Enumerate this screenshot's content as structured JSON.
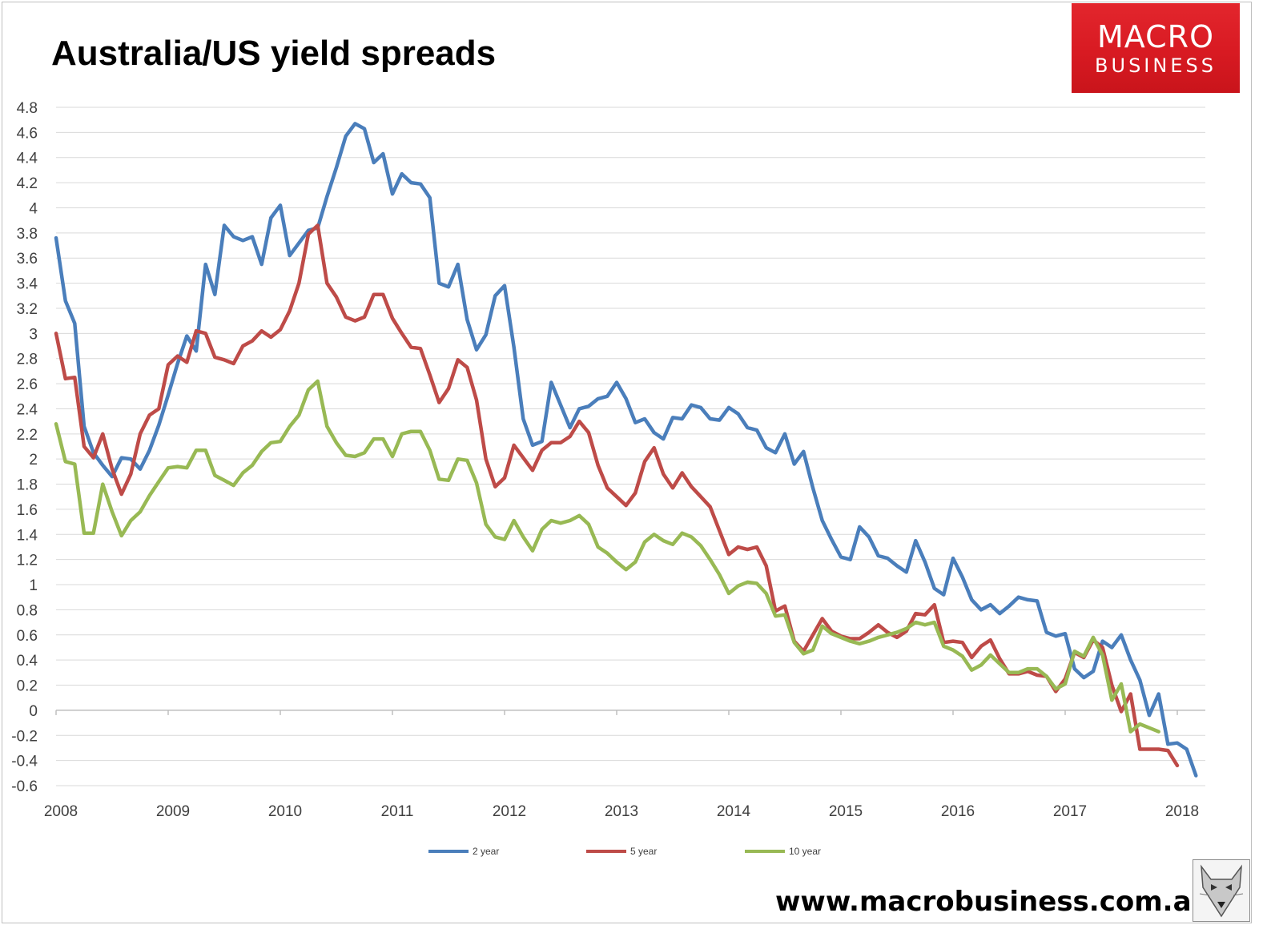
{
  "title": "Australia/US yield spreads",
  "logo": {
    "line1": "MACRO",
    "line2": "BUSINESS",
    "color": "#e3262d"
  },
  "website": "www.macrobusiness.com.au",
  "mascot_icon": "wolf-icon",
  "chart_data": {
    "type": "line",
    "title": "Australia/US yield spreads",
    "xlabel": "",
    "ylabel": "",
    "xlim": [
      2008,
      2018
    ],
    "ylim": [
      -0.6,
      4.8
    ],
    "yticks": [
      -0.6,
      -0.4,
      -0.2,
      0,
      0.2,
      0.4,
      0.6,
      0.8,
      1,
      1.2,
      1.4,
      1.6,
      1.8,
      2,
      2.2,
      2.4,
      2.6,
      2.8,
      3,
      3.2,
      3.4,
      3.6,
      3.8,
      4,
      4.2,
      4.4,
      4.6,
      4.8
    ],
    "ytick_labels": [
      "-0.6",
      "-0.4",
      "-0.2",
      "0",
      "0.2",
      "0.4",
      "0.6",
      "0.8",
      "1",
      "1.2",
      "1.4",
      "1.6",
      "1.8",
      "2",
      "2.2",
      "2.4",
      "2.6",
      "2.8",
      "3",
      "3.2",
      "3.4",
      "3.6",
      "3.8",
      "4",
      "4.2",
      "4.4",
      "4.6",
      "4.8"
    ],
    "xticks": [
      2008,
      2009,
      2010,
      2011,
      2012,
      2013,
      2014,
      2015,
      2016,
      2017,
      2018
    ],
    "xtick_labels": [
      "2008",
      "2009",
      "2010",
      "2011",
      "2012",
      "2013",
      "2014",
      "2015",
      "2016",
      "2017",
      "2018"
    ],
    "grid": true,
    "legend_position": "bottom",
    "x_start": 2008.0,
    "x_step_months": 1,
    "series": [
      {
        "name": "2 year",
        "color": "#4a7ebb",
        "values": [
          3.76,
          3.26,
          3.08,
          2.26,
          2.05,
          1.95,
          1.86,
          2.01,
          2.0,
          1.92,
          2.07,
          2.27,
          2.51,
          2.76,
          2.98,
          2.86,
          3.55,
          3.31,
          3.86,
          3.77,
          3.74,
          3.77,
          3.55,
          3.92,
          4.02,
          3.62,
          3.72,
          3.82,
          3.84,
          4.09,
          4.32,
          4.57,
          4.67,
          4.63,
          4.36,
          4.43,
          4.11,
          4.27,
          4.2,
          4.19,
          4.08,
          3.4,
          3.37,
          3.55,
          3.11,
          2.87,
          2.99,
          3.3,
          3.38,
          2.89,
          2.32,
          2.11,
          2.14,
          2.61,
          2.43,
          2.25,
          2.4,
          2.42,
          2.48,
          2.5,
          2.61,
          2.48,
          2.29,
          2.32,
          2.21,
          2.16,
          2.33,
          2.32,
          2.43,
          2.41,
          2.32,
          2.31,
          2.41,
          2.36,
          2.25,
          2.23,
          2.09,
          2.05,
          2.2,
          1.96,
          2.06,
          1.77,
          1.51,
          1.36,
          1.22,
          1.2,
          1.46,
          1.38,
          1.23,
          1.21,
          1.15,
          1.1,
          1.35,
          1.18,
          0.97,
          0.92,
          1.21,
          1.06,
          0.88,
          0.8,
          0.84,
          0.77,
          0.83,
          0.9,
          0.88,
          0.87,
          0.62,
          0.59,
          0.61,
          0.33,
          0.26,
          0.31,
          0.55,
          0.5,
          0.6,
          0.4,
          0.24,
          -0.04,
          0.13,
          -0.27,
          -0.26,
          -0.31,
          -0.52
        ]
      },
      {
        "name": "5 year",
        "color": "#be4b48",
        "values": [
          3.0,
          2.64,
          2.65,
          2.1,
          2.01,
          2.2,
          1.92,
          1.72,
          1.88,
          2.2,
          2.35,
          2.4,
          2.75,
          2.82,
          2.77,
          3.02,
          3.0,
          2.81,
          2.79,
          2.76,
          2.9,
          2.94,
          3.02,
          2.97,
          3.03,
          3.18,
          3.4,
          3.79,
          3.86,
          3.4,
          3.29,
          3.13,
          3.1,
          3.13,
          3.31,
          3.31,
          3.12,
          3.0,
          2.89,
          2.88,
          2.67,
          2.45,
          2.56,
          2.79,
          2.73,
          2.47,
          2.0,
          1.78,
          1.85,
          2.11,
          2.01,
          1.91,
          2.07,
          2.13,
          2.13,
          2.18,
          2.3,
          2.21,
          1.95,
          1.77,
          1.7,
          1.63,
          1.73,
          1.98,
          2.09,
          1.88,
          1.77,
          1.89,
          1.78,
          1.7,
          1.62,
          1.43,
          1.24,
          1.3,
          1.28,
          1.3,
          1.15,
          0.79,
          0.83,
          0.55,
          0.47,
          0.6,
          0.73,
          0.63,
          0.59,
          0.57,
          0.57,
          0.62,
          0.68,
          0.62,
          0.58,
          0.63,
          0.77,
          0.76,
          0.84,
          0.54,
          0.55,
          0.54,
          0.42,
          0.51,
          0.56,
          0.41,
          0.29,
          0.29,
          0.31,
          0.28,
          0.27,
          0.15,
          0.25,
          0.46,
          0.42,
          0.56,
          0.5,
          0.2,
          -0.01,
          0.13,
          -0.31,
          -0.31,
          -0.31,
          -0.32,
          -0.44
        ]
      },
      {
        "name": "10 year",
        "color": "#98b954",
        "values": [
          2.28,
          1.98,
          1.96,
          1.41,
          1.41,
          1.8,
          1.58,
          1.39,
          1.51,
          1.58,
          1.71,
          1.82,
          1.93,
          1.94,
          1.93,
          2.07,
          2.07,
          1.87,
          1.83,
          1.79,
          1.89,
          1.95,
          2.06,
          2.13,
          2.14,
          2.26,
          2.35,
          2.55,
          2.62,
          2.26,
          2.13,
          2.03,
          2.02,
          2.05,
          2.16,
          2.16,
          2.02,
          2.2,
          2.22,
          2.22,
          2.07,
          1.84,
          1.83,
          2.0,
          1.99,
          1.81,
          1.48,
          1.38,
          1.36,
          1.51,
          1.38,
          1.27,
          1.44,
          1.51,
          1.49,
          1.51,
          1.55,
          1.48,
          1.3,
          1.25,
          1.18,
          1.12,
          1.18,
          1.34,
          1.4,
          1.35,
          1.32,
          1.41,
          1.38,
          1.31,
          1.2,
          1.08,
          0.93,
          0.99,
          1.02,
          1.01,
          0.93,
          0.75,
          0.76,
          0.54,
          0.45,
          0.48,
          0.67,
          0.61,
          0.58,
          0.55,
          0.53,
          0.55,
          0.58,
          0.6,
          0.62,
          0.65,
          0.7,
          0.68,
          0.7,
          0.51,
          0.48,
          0.43,
          0.32,
          0.36,
          0.44,
          0.37,
          0.3,
          0.3,
          0.33,
          0.33,
          0.27,
          0.17,
          0.21,
          0.47,
          0.43,
          0.58,
          0.44,
          0.08,
          0.21,
          -0.17,
          -0.11,
          -0.14,
          -0.17
        ]
      }
    ]
  }
}
